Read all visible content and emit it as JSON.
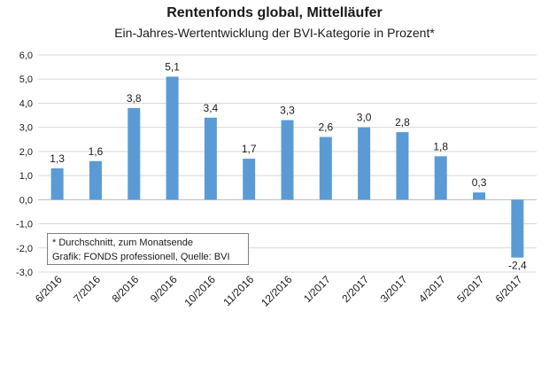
{
  "chart_data": {
    "type": "bar",
    "title": "Rentenfonds global, Mittelläufer",
    "subtitle": "Ein-Jahres-Wertentwicklung der BVI-Kategorie in Prozent*",
    "categories": [
      "6/2016",
      "7/2016",
      "8/2016",
      "9/2016",
      "10/2016",
      "11/2016",
      "12/2016",
      "1/2017",
      "2/2017",
      "3/2017",
      "4/2017",
      "5/2017",
      "6/2017"
    ],
    "values": [
      1.3,
      1.6,
      3.8,
      5.1,
      3.4,
      1.7,
      3.3,
      2.6,
      3.0,
      2.8,
      1.8,
      0.3,
      -2.4
    ],
    "value_labels": [
      "1,3",
      "1,6",
      "3,8",
      "5,1",
      "3,4",
      "1,7",
      "3,3",
      "2,6",
      "3,0",
      "2,8",
      "1,8",
      "0,3",
      "-2,4"
    ],
    "y_ticks": [
      6,
      5,
      4,
      3,
      2,
      1,
      0,
      -1,
      -2,
      -3
    ],
    "y_tick_labels": [
      "6,0",
      "5,0",
      "4,0",
      "3,0",
      "2,0",
      "1,0",
      "0,0",
      "-1,0",
      "-2,0",
      "-3,0"
    ],
    "ylim": [
      -3,
      6
    ],
    "grid": true,
    "bar_color": "#5b9bd5",
    "grid_color": "#d9d9d9"
  },
  "note": {
    "line1": "* Durchschnitt, zum Monatsende",
    "line2": "Grafik: FONDS professionell, Quelle: BVI"
  }
}
